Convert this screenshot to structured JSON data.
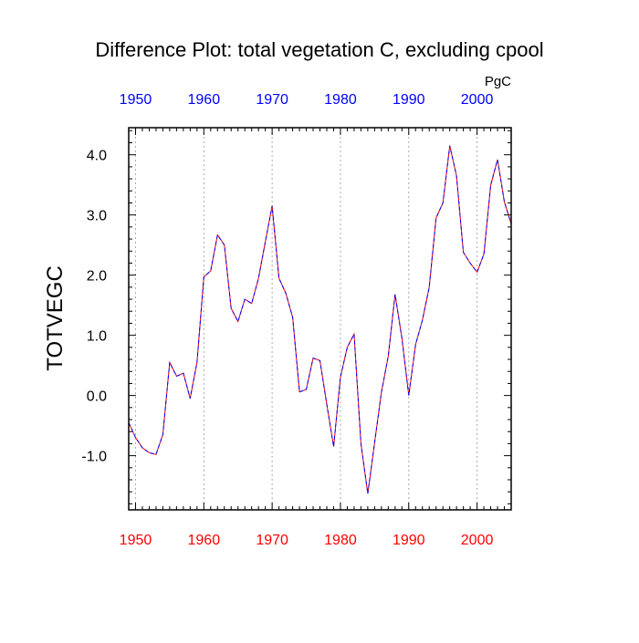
{
  "chart_data": {
    "type": "line",
    "title": "Difference Plot: total vegetation C, excluding cpool",
    "units": "PgC",
    "ylabel": "TOTVEGC",
    "xlabel": "",
    "xlim": [
      1949,
      2005
    ],
    "ylim": [
      -1.9,
      4.45
    ],
    "x_ticks": [
      "1950",
      "1960",
      "1970",
      "1980",
      "1990",
      "2000"
    ],
    "x_tick_values": [
      1950,
      1960,
      1970,
      1980,
      1990,
      2000
    ],
    "y_ticks": [
      "-1.0",
      "0.0",
      "1.0",
      "2.0",
      "3.0",
      "4.0"
    ],
    "y_tick_values": [
      -1.0,
      0.0,
      1.0,
      2.0,
      3.0,
      4.0
    ],
    "grid": "vertical dotted at major x ticks",
    "colors": {
      "bottom_tick_labels": "#ff0000",
      "top_tick_labels": "#0000ff",
      "line_solid": "#ff0000",
      "line_dash": "#0000ff",
      "grid": "#aaaaaa",
      "axis": "#000000"
    },
    "series": [
      {
        "name": "TOTVEGC difference",
        "x": [
          1949,
          1950,
          1951,
          1952,
          1953,
          1954,
          1955,
          1956,
          1957,
          1958,
          1959,
          1960,
          1961,
          1962,
          1963,
          1964,
          1965,
          1966,
          1967,
          1968,
          1969,
          1970,
          1971,
          1972,
          1973,
          1974,
          1975,
          1976,
          1977,
          1978,
          1979,
          1980,
          1981,
          1982,
          1983,
          1984,
          1985,
          1986,
          1987,
          1988,
          1989,
          1990,
          1991,
          1992,
          1993,
          1994,
          1995,
          1996,
          1997,
          1998,
          1999,
          2000,
          2001,
          2002,
          2003,
          2004,
          2005
        ],
        "values": [
          -0.45,
          -0.7,
          -0.87,
          -0.95,
          -0.98,
          -0.65,
          0.55,
          0.32,
          0.37,
          -0.05,
          0.55,
          1.97,
          2.07,
          2.67,
          2.5,
          1.45,
          1.23,
          1.6,
          1.53,
          1.95,
          2.55,
          3.15,
          1.95,
          1.7,
          1.3,
          0.06,
          0.1,
          0.62,
          0.58,
          -0.15,
          -0.85,
          0.3,
          0.8,
          1.02,
          -0.8,
          -1.63,
          -0.78,
          0.05,
          0.65,
          1.68,
          0.95,
          0.0,
          0.85,
          1.25,
          1.8,
          2.95,
          3.2,
          4.15,
          3.65,
          2.38,
          2.2,
          2.05,
          2.35,
          3.5,
          3.92,
          3.22,
          2.85
        ]
      }
    ]
  }
}
